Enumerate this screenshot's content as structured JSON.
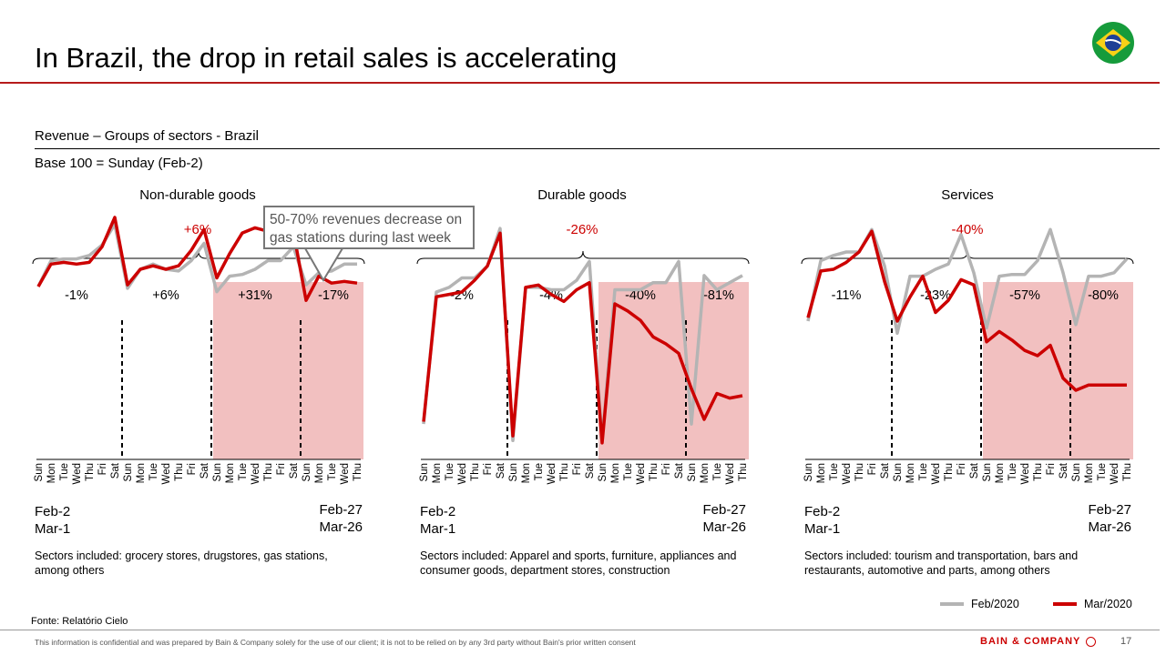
{
  "header": {
    "title": "In Brazil, the drop in retail sales is accelerating"
  },
  "subtitle": "Revenue – Groups of sectors - Brazil",
  "base_label": "Base 100 = Sunday (Feb-2)",
  "callout": "50-70% revenues decrease on gas stations during last week",
  "days": [
    "Sun",
    "Mon",
    "Tue",
    "Wed",
    "Thu",
    "Fri",
    "Sat",
    "Sun",
    "Mon",
    "Tue",
    "Wed",
    "Thu",
    "Fri",
    "Sat",
    "Sun",
    "Mon",
    "Tue",
    "Wed",
    "Thu",
    "Fri",
    "Sat",
    "Sun",
    "Mon",
    "Tue",
    "Wed",
    "Thu"
  ],
  "date_left": [
    "Feb-2",
    "Mar-1"
  ],
  "date_right": [
    "Feb-27",
    "Mar-26"
  ],
  "colors": {
    "feb": "#b4b4b4",
    "mar": "#cc0000",
    "shade": "#f2c0c0",
    "accent": "#cc0000"
  },
  "legend": [
    {
      "label": "Feb/2020",
      "color": "#b4b4b4"
    },
    {
      "label": "Mar/2020",
      "color": "#cc0000"
    }
  ],
  "chart_data": [
    {
      "type": "line",
      "title": "Non-durable goods",
      "total_change": "+6%",
      "week_changes": [
        "-1%",
        "+6%",
        "+31%",
        "-17%"
      ],
      "note": "Sectors included: grocery stores, drugstores, gas stations, among others",
      "x": [
        "Sun",
        "Mon",
        "Tue",
        "Wed",
        "Thu",
        "Fri",
        "Sat",
        "Sun",
        "Mon",
        "Tue",
        "Wed",
        "Thu",
        "Fri",
        "Sat",
        "Sun",
        "Mon",
        "Tue",
        "Wed",
        "Thu",
        "Fri",
        "Sat",
        "Sun",
        "Mon",
        "Tue",
        "Wed",
        "Thu"
      ],
      "shaded_weeks": [
        3,
        4
      ],
      "series": [
        {
          "name": "Feb/2020",
          "values": [
            100,
            115,
            116,
            116,
            118,
            124,
            136,
            99,
            110,
            113,
            110,
            109,
            115,
            125,
            97,
            106,
            107,
            110,
            115,
            115,
            123,
            101,
            108,
            109,
            113,
            113
          ]
        },
        {
          "name": "Mar/2020",
          "values": [
            100,
            113,
            114,
            113,
            114,
            123,
            140,
            101,
            110,
            112,
            110,
            112,
            121,
            133,
            105,
            119,
            131,
            134,
            132,
            136,
            132,
            92,
            106,
            102,
            103,
            102
          ]
        }
      ]
    },
    {
      "type": "line",
      "title": "Durable goods",
      "total_change": "-26%",
      "week_changes": [
        "-2%",
        "-4%",
        "-40%",
        "-81%"
      ],
      "note": "Sectors included: Apparel and sports, furniture, appliances and consumer goods, department stores, construction",
      "x": [
        "Sun",
        "Mon",
        "Tue",
        "Wed",
        "Thu",
        "Fri",
        "Sat",
        "Sun",
        "Mon",
        "Tue",
        "Wed",
        "Thu",
        "Fri",
        "Sat",
        "Sun",
        "Mon",
        "Tue",
        "Wed",
        "Thu",
        "Fri",
        "Sat",
        "Sun",
        "Mon",
        "Tue",
        "Wed",
        "Thu"
      ],
      "shaded_weeks": [
        3,
        4
      ],
      "series": [
        {
          "name": "Feb/2020",
          "values": [
            15,
            71,
            73,
            77,
            77,
            82,
            98,
            8,
            73,
            73,
            72,
            72,
            76,
            84,
            8,
            72,
            72,
            72,
            75,
            75,
            84,
            15,
            78,
            72,
            75,
            78
          ]
        },
        {
          "name": "Mar/2020",
          "values": [
            16,
            69,
            70,
            71,
            76,
            82,
            96,
            10,
            73,
            74,
            70,
            67,
            72,
            75,
            7,
            66,
            63,
            59,
            52,
            49,
            45,
            30,
            17,
            28,
            26,
            27
          ]
        }
      ]
    },
    {
      "type": "line",
      "title": "Services",
      "total_change": "-40%",
      "week_changes": [
        "-11%",
        "-23%",
        "-57%",
        "-80%"
      ],
      "note": "Sectors included: tourism and transportation, bars and restaurants, automotive and parts, among others",
      "x": [
        "Sun",
        "Mon",
        "Tue",
        "Wed",
        "Thu",
        "Fri",
        "Sat",
        "Sun",
        "Mon",
        "Tue",
        "Wed",
        "Thu",
        "Fri",
        "Sat",
        "Sun",
        "Mon",
        "Tue",
        "Wed",
        "Thu",
        "Fri",
        "Sat",
        "Sun",
        "Mon",
        "Tue",
        "Wed",
        "Thu"
      ],
      "shaded_weeks": [
        3,
        4
      ],
      "series": [
        {
          "name": "Feb/2020",
          "values": [
            100,
            135,
            138,
            140,
            140,
            153,
            132,
            93,
            126,
            126,
            130,
            133,
            150,
            128,
            96,
            126,
            127,
            127,
            135,
            153,
            128,
            98,
            126,
            126,
            128,
            136
          ]
        },
        {
          "name": "Mar/2020",
          "values": [
            102,
            129,
            130,
            134,
            140,
            152,
            123,
            100,
            114,
            126,
            105,
            112,
            124,
            121,
            88,
            94,
            89,
            83,
            80,
            86,
            67,
            60,
            63,
            63,
            63,
            63
          ]
        }
      ]
    }
  ],
  "source": "Fonte: Relatório Cielo",
  "footer": {
    "disclaimer": "This information is confidential and was prepared by Bain & Company solely for the use of our client; it is not to be relied on by any 3rd party without Bain's prior written consent",
    "brand": "BAIN & COMPANY",
    "page": "17"
  }
}
